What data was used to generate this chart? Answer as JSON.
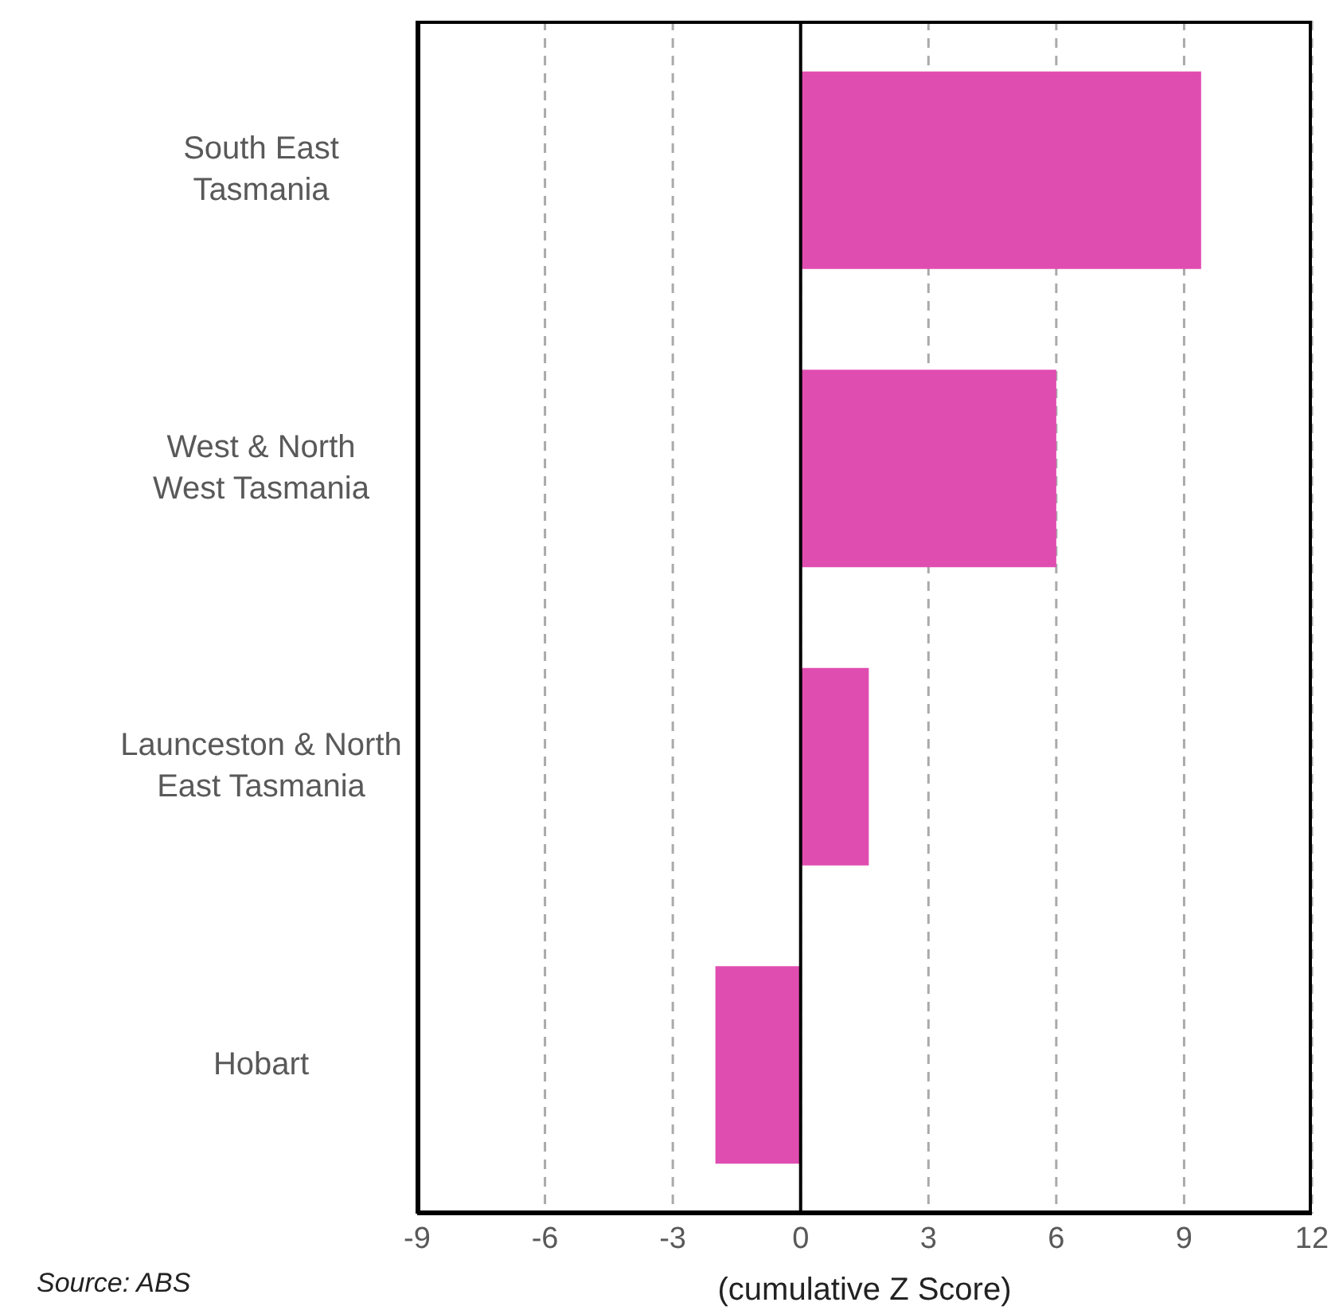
{
  "chart_data": {
    "type": "bar",
    "orientation": "horizontal",
    "categories": [
      "South East Tasmania",
      "West & North West Tasmania",
      "Launceston & North East Tasmania",
      "Hobart"
    ],
    "values": [
      9.4,
      6.0,
      1.6,
      -2.0
    ],
    "color": "#e04db1",
    "xlabel": "(cumulative Z Score)",
    "xlim": [
      -9,
      12
    ],
    "xticks": [
      -9,
      -6,
      -3,
      0,
      3,
      6,
      9,
      12
    ],
    "grid": "x",
    "ref_lines": [
      {
        "axis": "x",
        "value": 0,
        "color": "#000000"
      }
    ],
    "annotations": [
      "Source: ABS"
    ]
  }
}
